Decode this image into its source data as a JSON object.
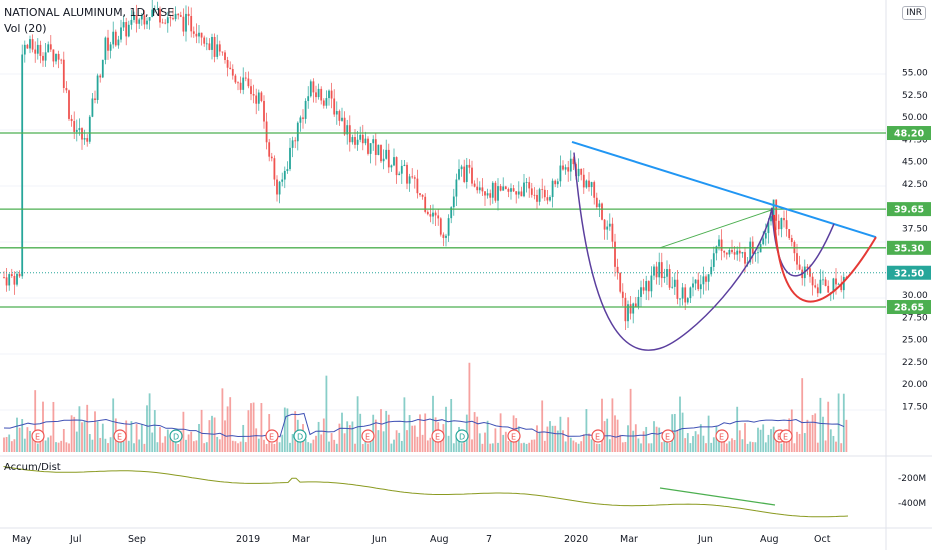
{
  "header": {
    "symbol_line": "NATIONAL ALUMINUM, 1D, NSE",
    "volume_label": "Vol (20)",
    "currency": "INR"
  },
  "accum": {
    "label": "Accum/Dist",
    "ticks": [
      "-200M",
      "-400M"
    ]
  },
  "colors": {
    "up": "#26a69a",
    "down": "#ef5350",
    "support": "#4caf50",
    "trend": "#2196f3",
    "cup": "#5b3f9e",
    "red_cup": "#e53935",
    "volume_ma": "#3f51b5",
    "accum": "#8a9a20"
  },
  "chart_data": {
    "type": "candlestick",
    "price_axis": [
      "55.00",
      "52.50",
      "50.00",
      "47.50",
      "45.00",
      "42.50",
      "37.50",
      "30.00",
      "27.50",
      "25.00",
      "22.50",
      "20.00",
      "17.50"
    ],
    "price_tags": [
      {
        "label": "48.20",
        "value": 48.2,
        "kind": "support"
      },
      {
        "label": "39.65",
        "value": 39.65,
        "kind": "support"
      },
      {
        "label": "35.30",
        "value": 35.3,
        "kind": "support"
      },
      {
        "label": "32.50",
        "value": 32.5,
        "kind": "last"
      },
      {
        "label": "28.65",
        "value": 28.65,
        "kind": "support"
      }
    ],
    "horizontal_lines": [
      48.2,
      39.65,
      35.3,
      28.65
    ],
    "x_labels": [
      "May",
      "Jul",
      "Sep",
      "2019",
      "Mar",
      "Jun",
      "Aug",
      "7",
      "2020",
      "Mar",
      "Jun",
      "Aug",
      "Oct"
    ],
    "earnings_markers": [
      "E",
      "E",
      "D",
      "E",
      "D",
      "E",
      "E",
      "D",
      "E",
      "E",
      "E",
      "E",
      "E",
      "E"
    ]
  }
}
